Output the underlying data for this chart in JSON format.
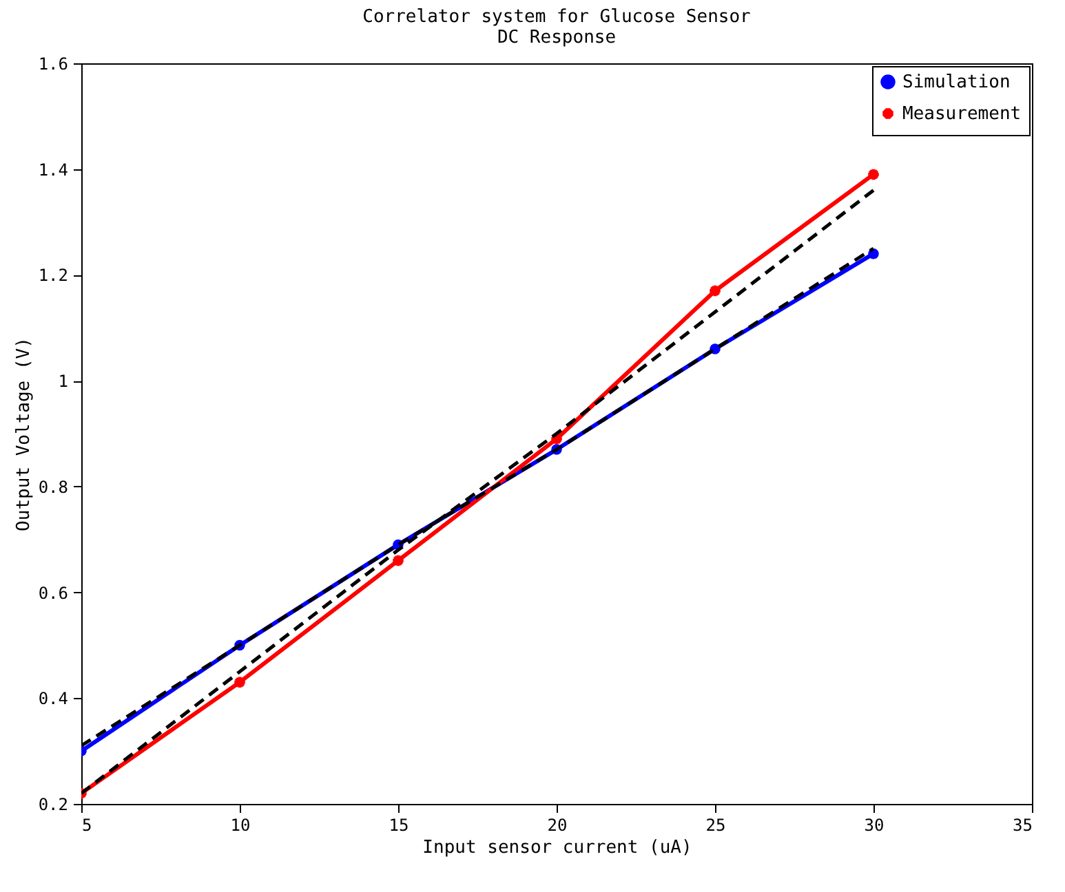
{
  "chart_data": {
    "type": "line",
    "title": "Correlator system for Glucose Sensor",
    "subtitle": "DC Response",
    "xlabel": "Input sensor current (uA)",
    "ylabel": "Output Voltage (V)",
    "x": [
      5,
      10,
      15,
      20,
      25,
      30
    ],
    "series": [
      {
        "name": "Simulation",
        "color": "#0000ff",
        "marker": "circle",
        "values": [
          0.3,
          0.5,
          0.69,
          0.87,
          1.06,
          1.24
        ]
      },
      {
        "name": "Measurement",
        "color": "#ff0000",
        "marker": "cross",
        "values": [
          0.22,
          0.43,
          0.66,
          0.89,
          1.17,
          1.39
        ]
      },
      {
        "type": "line",
        "color": "#000000",
        "line_style": "dashed",
        "marker": "none",
        "values": [
          0.31,
          0.5,
          0.69,
          0.87,
          1.06,
          1.25
        ]
      },
      {
        "type": "line",
        "color": "#000000",
        "line_style": "dashed",
        "marker": "none",
        "values": [
          0.22,
          0.45,
          0.68,
          0.9,
          1.13,
          1.36
        ]
      }
    ],
    "xlim": [
      5,
      35
    ],
    "xticks": [
      5,
      10,
      15,
      20,
      25,
      30,
      35
    ],
    "ylim": [
      0.2,
      1.6
    ],
    "yticks": [
      0.2,
      0.4,
      0.6,
      0.8,
      1,
      1.2,
      1.4,
      1.6
    ],
    "grid": false,
    "legend": "top right",
    "line_style": "solid"
  }
}
